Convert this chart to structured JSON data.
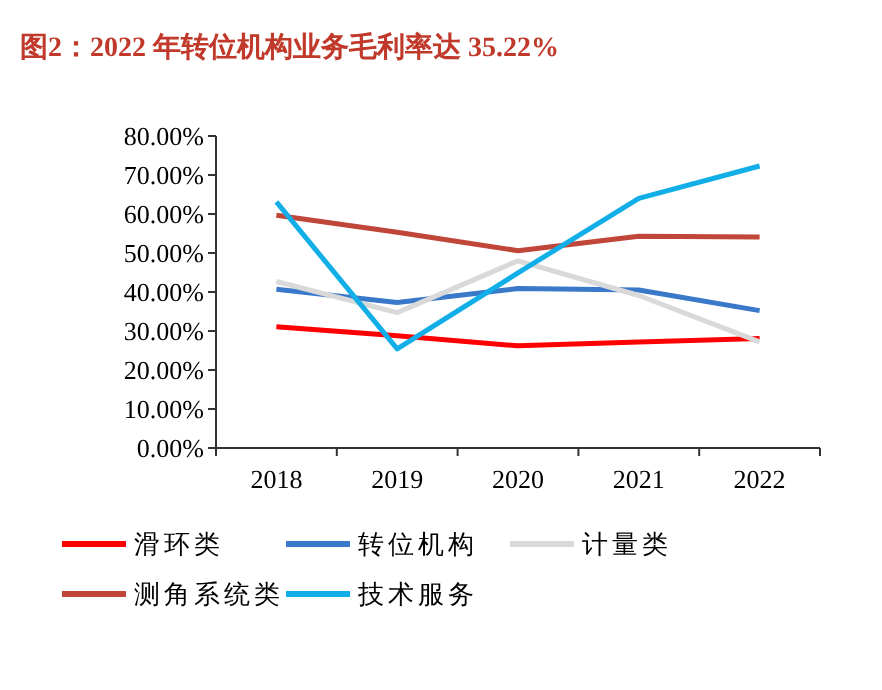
{
  "chart_data": {
    "type": "line",
    "title": "图2：2022 年转位机构业务毛利率达 35.22%",
    "categories": [
      "2018",
      "2019",
      "2020",
      "2021",
      "2022"
    ],
    "series": [
      {
        "name": "滑环类",
        "color": "#ff0000",
        "values": [
          31.1,
          28.8,
          26.2,
          27.2,
          28.1
        ]
      },
      {
        "name": "转位机构",
        "color": "#3a78c9",
        "values": [
          40.7,
          37.3,
          40.9,
          40.5,
          35.22
        ]
      },
      {
        "name": "计量类",
        "color": "#d9d9d9",
        "values": [
          42.7,
          34.7,
          48.0,
          39.1,
          27.2
        ]
      },
      {
        "name": "测角系统类",
        "color": "#c0463a",
        "values": [
          59.7,
          55.3,
          50.6,
          54.3,
          54.1
        ]
      },
      {
        "name": "技术服务",
        "color": "#12aee8",
        "values": [
          63.1,
          25.4,
          44.9,
          64.0,
          72.3
        ]
      }
    ],
    "ylim": [
      0,
      80
    ],
    "yticks": [
      {
        "value": 0,
        "label": "0.00%"
      },
      {
        "value": 10,
        "label": "10.00%"
      },
      {
        "value": 20,
        "label": "20.00%"
      },
      {
        "value": 30,
        "label": "30.00%"
      },
      {
        "value": 40,
        "label": "40.00%"
      },
      {
        "value": 50,
        "label": "50.00%"
      },
      {
        "value": 60,
        "label": "60.00%"
      },
      {
        "value": 70,
        "label": "70.00%"
      },
      {
        "value": 80,
        "label": "80.00%"
      }
    ],
    "legend": "bottom",
    "grid": false,
    "marker": "none",
    "line_style": "solid"
  }
}
